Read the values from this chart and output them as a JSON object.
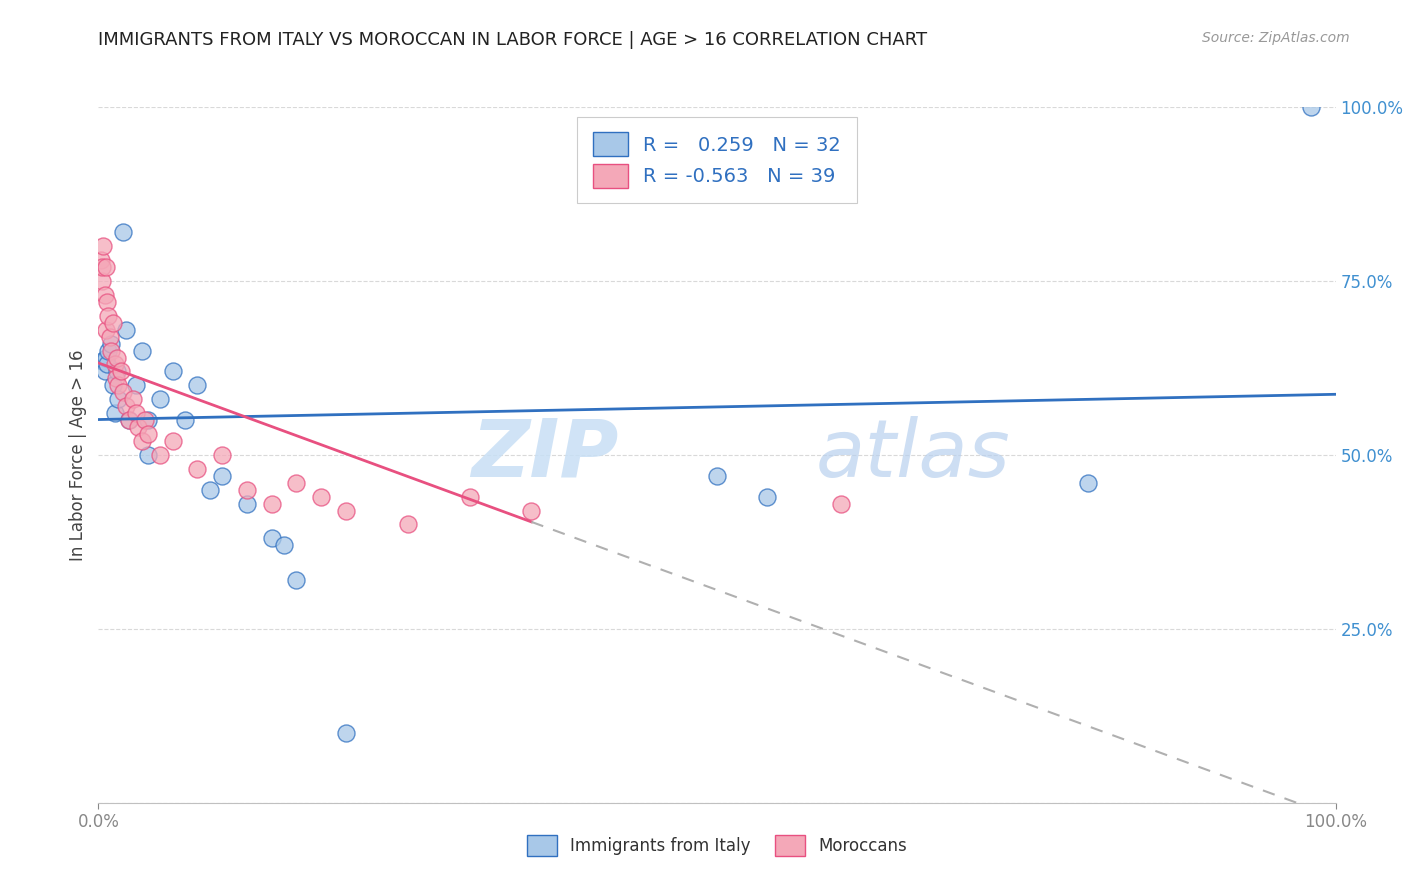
{
  "title": "IMMIGRANTS FROM ITALY VS MOROCCAN IN LABOR FORCE | AGE > 16 CORRELATION CHART",
  "source": "Source: ZipAtlas.com",
  "ylabel": "In Labor Force | Age > 16",
  "xlim": [
    0.0,
    1.0
  ],
  "ylim": [
    0.0,
    1.0
  ],
  "legend_labels": [
    "Immigrants from Italy",
    "Moroccans"
  ],
  "italy_R": "0.259",
  "italy_N": "32",
  "morocco_R": "-0.563",
  "morocco_N": "39",
  "italy_color": "#a8c8e8",
  "morocco_color": "#f4a8b8",
  "italy_line_color": "#3070c0",
  "morocco_line_color": "#e85080",
  "italy_scatter": [
    [
      0.003,
      0.635
    ],
    [
      0.005,
      0.62
    ],
    [
      0.006,
      0.64
    ],
    [
      0.007,
      0.63
    ],
    [
      0.008,
      0.65
    ],
    [
      0.01,
      0.66
    ],
    [
      0.012,
      0.6
    ],
    [
      0.013,
      0.56
    ],
    [
      0.015,
      0.62
    ],
    [
      0.016,
      0.58
    ],
    [
      0.02,
      0.82
    ],
    [
      0.022,
      0.68
    ],
    [
      0.025,
      0.55
    ],
    [
      0.03,
      0.6
    ],
    [
      0.035,
      0.65
    ],
    [
      0.04,
      0.55
    ],
    [
      0.04,
      0.5
    ],
    [
      0.05,
      0.58
    ],
    [
      0.06,
      0.62
    ],
    [
      0.07,
      0.55
    ],
    [
      0.08,
      0.6
    ],
    [
      0.09,
      0.45
    ],
    [
      0.1,
      0.47
    ],
    [
      0.12,
      0.43
    ],
    [
      0.14,
      0.38
    ],
    [
      0.15,
      0.37
    ],
    [
      0.16,
      0.32
    ],
    [
      0.2,
      0.1
    ],
    [
      0.5,
      0.47
    ],
    [
      0.54,
      0.44
    ],
    [
      0.8,
      0.46
    ],
    [
      0.98,
      1.0
    ]
  ],
  "morocco_scatter": [
    [
      0.002,
      0.78
    ],
    [
      0.003,
      0.75
    ],
    [
      0.003,
      0.77
    ],
    [
      0.004,
      0.8
    ],
    [
      0.005,
      0.73
    ],
    [
      0.006,
      0.77
    ],
    [
      0.006,
      0.68
    ],
    [
      0.007,
      0.72
    ],
    [
      0.008,
      0.7
    ],
    [
      0.009,
      0.67
    ],
    [
      0.01,
      0.65
    ],
    [
      0.012,
      0.69
    ],
    [
      0.013,
      0.63
    ],
    [
      0.014,
      0.61
    ],
    [
      0.015,
      0.64
    ],
    [
      0.016,
      0.6
    ],
    [
      0.018,
      0.62
    ],
    [
      0.02,
      0.59
    ],
    [
      0.022,
      0.57
    ],
    [
      0.025,
      0.55
    ],
    [
      0.028,
      0.58
    ],
    [
      0.03,
      0.56
    ],
    [
      0.032,
      0.54
    ],
    [
      0.035,
      0.52
    ],
    [
      0.038,
      0.55
    ],
    [
      0.04,
      0.53
    ],
    [
      0.05,
      0.5
    ],
    [
      0.06,
      0.52
    ],
    [
      0.08,
      0.48
    ],
    [
      0.1,
      0.5
    ],
    [
      0.12,
      0.45
    ],
    [
      0.14,
      0.43
    ],
    [
      0.16,
      0.46
    ],
    [
      0.18,
      0.44
    ],
    [
      0.2,
      0.42
    ],
    [
      0.25,
      0.4
    ],
    [
      0.3,
      0.44
    ],
    [
      0.35,
      0.42
    ],
    [
      0.6,
      0.43
    ]
  ],
  "watermark_zip": "ZIP",
  "watermark_atlas": "atlas",
  "background_color": "#ffffff",
  "grid_color": "#d0d0d0"
}
